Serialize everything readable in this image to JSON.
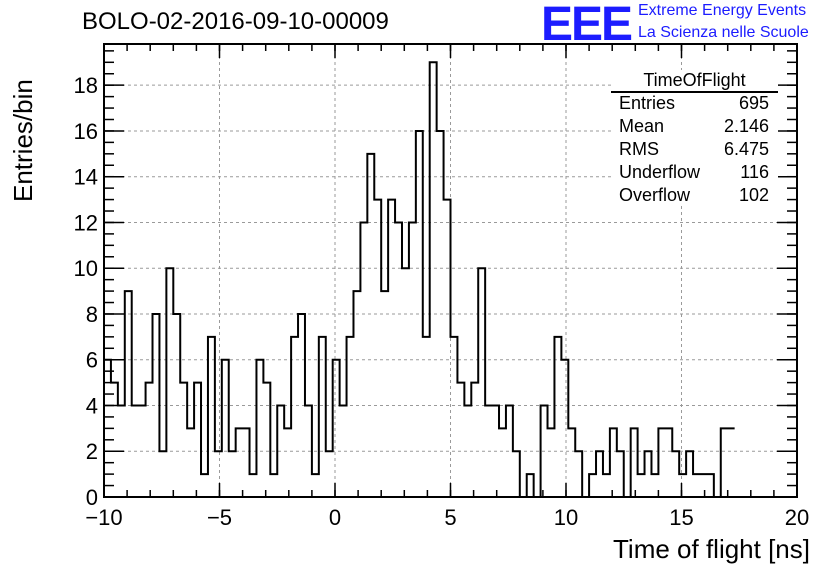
{
  "title": "BOLO-02-2016-09-10-00009",
  "logo": {
    "mark": "EEE",
    "line1": "Extreme Energy Events",
    "line2": "La Scienza nelle Scuole",
    "color": "#1c1cff"
  },
  "stats_box": {
    "title": "TimeOfFlight",
    "rows": [
      {
        "key": "Entries",
        "value": "695"
      },
      {
        "key": "Mean",
        "value": "2.146"
      },
      {
        "key": "RMS",
        "value": "6.475"
      },
      {
        "key": "Underflow",
        "value": "116"
      },
      {
        "key": "Overflow",
        "value": "102"
      }
    ]
  },
  "chart_data": {
    "type": "bar",
    "histogram": true,
    "xlabel": "Time of flight [ns]",
    "ylabel": "Entries/bin",
    "xlim": [
      -10,
      20
    ],
    "ylim": [
      0,
      19.8
    ],
    "bin_width": 0.3,
    "bin_start": -10,
    "x_ticks": [
      "−10",
      "−5",
      "0",
      "5",
      "10",
      "15",
      "20"
    ],
    "x_tick_values": [
      -10,
      -5,
      0,
      5,
      10,
      15,
      20
    ],
    "y_ticks": [
      "0",
      "2",
      "4",
      "6",
      "8",
      "10",
      "12",
      "14",
      "16",
      "18"
    ],
    "y_tick_values": [
      0,
      2,
      4,
      6,
      8,
      10,
      12,
      14,
      16,
      18
    ],
    "grid": true,
    "line_color": "#000000",
    "values": [
      6,
      5,
      4,
      9,
      4,
      4,
      5,
      8,
      2,
      10,
      8,
      5,
      3,
      5,
      1,
      7,
      2,
      6,
      2,
      3,
      3,
      1,
      6,
      5,
      1,
      4,
      3,
      7,
      8,
      4,
      1,
      7,
      2,
      6,
      4,
      7,
      9,
      12,
      15,
      13,
      9,
      13,
      12,
      10,
      12,
      16,
      7,
      19,
      16,
      13,
      7,
      5,
      4,
      5,
      10,
      4,
      4,
      3,
      4,
      2,
      0,
      1,
      0,
      4,
      3,
      7,
      6,
      3,
      2,
      0,
      1,
      2,
      1,
      3,
      2,
      0,
      3,
      1,
      2,
      1,
      3,
      3,
      2,
      1,
      2,
      1,
      1,
      1,
      0,
      3,
      3
    ]
  }
}
